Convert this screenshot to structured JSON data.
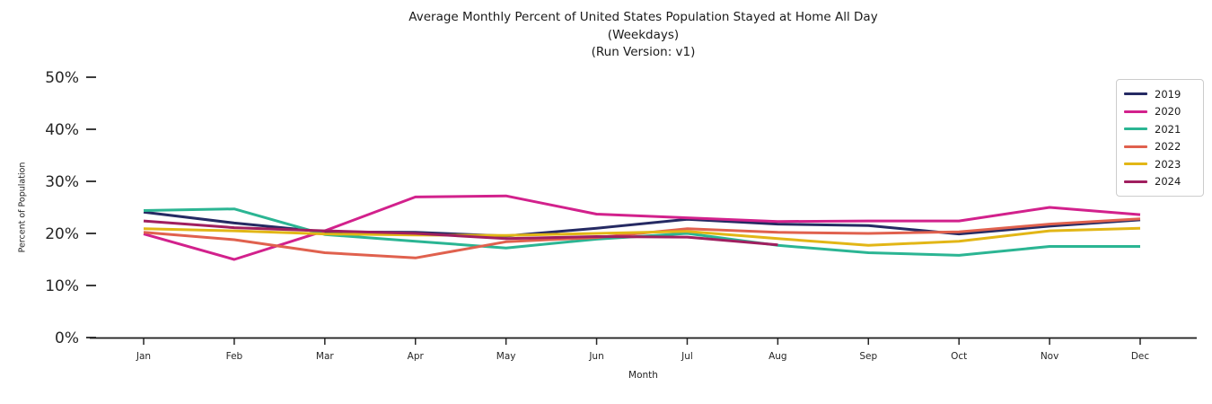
{
  "title": {
    "line1": "Average Monthly Percent of United States Population Stayed at Home All Day",
    "line2": "(Weekdays)",
    "line3": "(Run Version: v1)"
  },
  "chart_data": {
    "type": "line",
    "title": "Average Monthly Percent of United States Population Stayed at Home All Day\n(Weekdays)\n(Run Version: v1)",
    "xlabel": "Month",
    "ylabel": "Percent of Population",
    "categories": [
      "Jan",
      "Feb",
      "Mar",
      "Apr",
      "May",
      "Jun",
      "Jul",
      "Aug",
      "Sep",
      "Oct",
      "Nov",
      "Dec"
    ],
    "ylim": [
      0,
      50
    ],
    "yticks": [
      "0%",
      "10%",
      "20%",
      "30%",
      "40%",
      "50%"
    ],
    "ytick_values": [
      0,
      10,
      20,
      30,
      40,
      50
    ],
    "grid": false,
    "legend_position": "upper right",
    "series": [
      {
        "name": "2019",
        "color": "#252a63",
        "values": [
          24.1,
          22.0,
          20.3,
          20.2,
          19.5,
          21.0,
          22.7,
          21.8,
          21.5,
          19.9,
          21.4,
          22.6
        ]
      },
      {
        "name": "2020",
        "color": "#d2218c",
        "values": [
          19.9,
          15.0,
          20.5,
          27.0,
          27.2,
          23.7,
          23.0,
          22.3,
          22.4,
          22.4,
          25.0,
          23.6
        ]
      },
      {
        "name": "2021",
        "color": "#2bb593",
        "values": [
          24.4,
          24.7,
          19.8,
          18.5,
          17.2,
          18.9,
          20.0,
          17.7,
          16.3,
          15.8,
          17.5,
          17.5
        ]
      },
      {
        "name": "2022",
        "color": "#e0614e",
        "values": [
          20.2,
          18.8,
          16.3,
          15.3,
          18.4,
          19.2,
          20.9,
          20.2,
          20.0,
          20.3,
          21.8,
          22.8
        ]
      },
      {
        "name": "2023",
        "color": "#e2b616",
        "values": [
          20.9,
          20.5,
          19.9,
          19.7,
          19.6,
          20.0,
          20.4,
          19.0,
          17.7,
          18.5,
          20.5,
          21.0
        ]
      },
      {
        "name": "2024",
        "color": "#a01f5f",
        "values": [
          22.4,
          21.1,
          20.5,
          20.0,
          19.0,
          19.4,
          19.3,
          17.8,
          null,
          null,
          null,
          null
        ]
      }
    ]
  }
}
